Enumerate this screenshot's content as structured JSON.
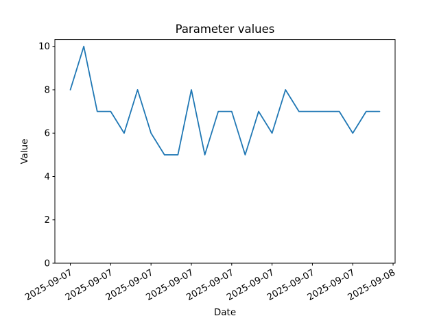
{
  "chart_data": {
    "type": "line",
    "title": "Parameter values",
    "xlabel": "Date",
    "ylabel": "Value",
    "x": [
      0,
      1,
      2,
      3,
      4,
      5,
      6,
      7,
      8,
      9,
      10,
      11,
      12,
      13,
      14,
      15,
      16,
      17,
      18,
      19,
      20,
      21,
      22,
      23
    ],
    "values": [
      8,
      10,
      7,
      7,
      6,
      8,
      6,
      5,
      5,
      8,
      5,
      7,
      7,
      5,
      7,
      6,
      8,
      7,
      7,
      7,
      7,
      6,
      7,
      7
    ],
    "series_name": "Parameter values",
    "line_color": "#1f77b4",
    "line_width": 1.8,
    "axis_color": "#000000",
    "background_color": "#ffffff",
    "xlim": [
      -1.15,
      24.15
    ],
    "ylim": [
      0,
      10.32
    ],
    "yticks": [
      0,
      2,
      4,
      6,
      8,
      10
    ],
    "xticks": {
      "positions": [
        0,
        3,
        6,
        9,
        12,
        15,
        18,
        21,
        24
      ],
      "labels": [
        "2025-09-07",
        "2025-09-07",
        "2025-09-07",
        "2025-09-07",
        "2025-09-07",
        "2025-09-07",
        "2025-09-07",
        "2025-09-07",
        "2025-09-08"
      ],
      "rotation_deg": -30
    },
    "grid": false,
    "legend": null
  }
}
